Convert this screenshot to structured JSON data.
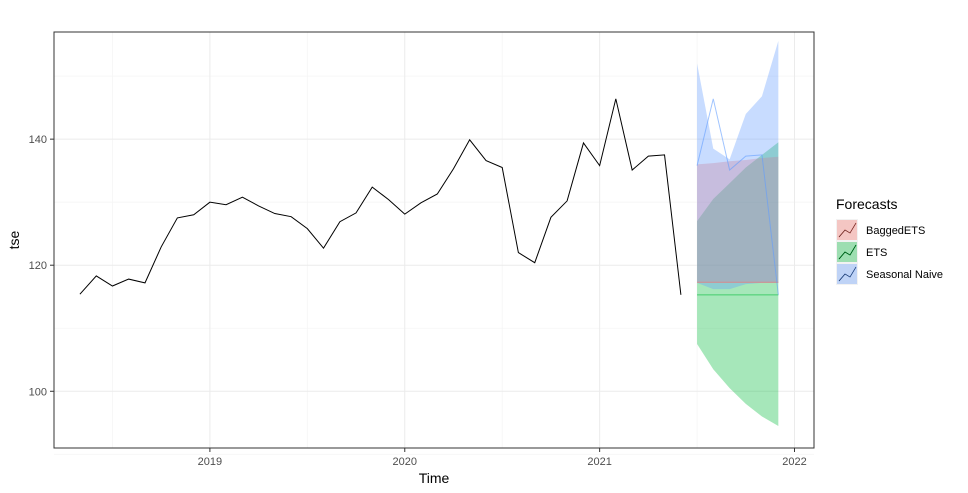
{
  "chart_data": {
    "type": "line",
    "title": "",
    "xlabel": "Time",
    "ylabel": "tse",
    "xlim": [
      2018.2,
      2022.1
    ],
    "ylim": [
      91,
      157
    ],
    "x_ticks": [
      2019,
      2020,
      2021,
      2022
    ],
    "x_tick_labels": [
      "2019",
      "2020",
      "2021",
      "2022"
    ],
    "y_ticks": [
      100,
      120,
      140
    ],
    "y_tick_labels": [
      "100",
      "120",
      "140"
    ],
    "grid": true,
    "legend": {
      "title": "Forecasts",
      "position": "right",
      "entries": [
        "BaggedETS",
        "ETS",
        "Seasonal Naive"
      ]
    },
    "colors": {
      "history": "#000000",
      "BaggedETS": "#f8766d",
      "ETS": "#00ba38",
      "Seasonal Naive": "#619cff",
      "grid_major": "#ebebeb",
      "grid_minor": "#f5f5f5",
      "panel_border": "#333333"
    },
    "history": {
      "x": [
        2018.333,
        2018.417,
        2018.5,
        2018.583,
        2018.667,
        2018.75,
        2018.833,
        2018.917,
        2019.0,
        2019.083,
        2019.167,
        2019.25,
        2019.333,
        2019.417,
        2019.5,
        2019.583,
        2019.667,
        2019.75,
        2019.833,
        2019.917,
        2020.0,
        2020.083,
        2020.167,
        2020.25,
        2020.333,
        2020.417,
        2020.5,
        2020.583,
        2020.667,
        2020.75,
        2020.833,
        2020.917,
        2021.0,
        2021.083,
        2021.167,
        2021.25,
        2021.333,
        2021.417
      ],
      "values": [
        115.4,
        118.3,
        116.7,
        117.8,
        117.2,
        122.9,
        127.5,
        128.0,
        130.0,
        129.6,
        130.8,
        129.4,
        128.2,
        127.7,
        125.8,
        122.7,
        126.9,
        128.3,
        132.4,
        130.4,
        128.1,
        129.9,
        131.3,
        135.3,
        139.9,
        136.6,
        135.5,
        122.0,
        120.4,
        127.6,
        130.2,
        139.4,
        135.8,
        146.4,
        135.1,
        137.3,
        137.5,
        115.3
      ]
    },
    "forecast_x": [
      2021.5,
      2021.583,
      2021.667,
      2021.75,
      2021.833,
      2021.917
    ],
    "intervals": [
      {
        "name": "ETS",
        "upper": [
          127.0,
          130.5,
          133.0,
          135.5,
          137.5,
          139.5
        ],
        "lower": [
          107.5,
          103.5,
          100.5,
          98.0,
          96.0,
          94.5
        ]
      },
      {
        "name": "BaggedETS",
        "upper": [
          136.0,
          136.2,
          136.5,
          136.7,
          137.0,
          137.2
        ],
        "lower": [
          117.2,
          117.2,
          117.2,
          117.2,
          117.2,
          117.2
        ]
      },
      {
        "name": "Seasonal Naive",
        "upper": [
          152.0,
          138.5,
          136.8,
          144.0,
          146.8,
          155.6
        ],
        "lower": [
          117.2,
          116.2,
          116.2,
          117.0,
          117.2,
          117.2
        ]
      }
    ],
    "lines": [
      {
        "name": "ETS",
        "values": [
          115.3,
          115.3,
          115.3,
          115.3,
          115.3,
          115.3
        ]
      },
      {
        "name": "BaggedETS",
        "values": [
          117.3,
          117.3,
          117.3,
          117.3,
          117.3,
          117.3
        ]
      },
      {
        "name": "Seasonal Naive",
        "values": [
          135.8,
          146.4,
          135.1,
          137.3,
          137.5,
          115.3
        ]
      }
    ]
  }
}
